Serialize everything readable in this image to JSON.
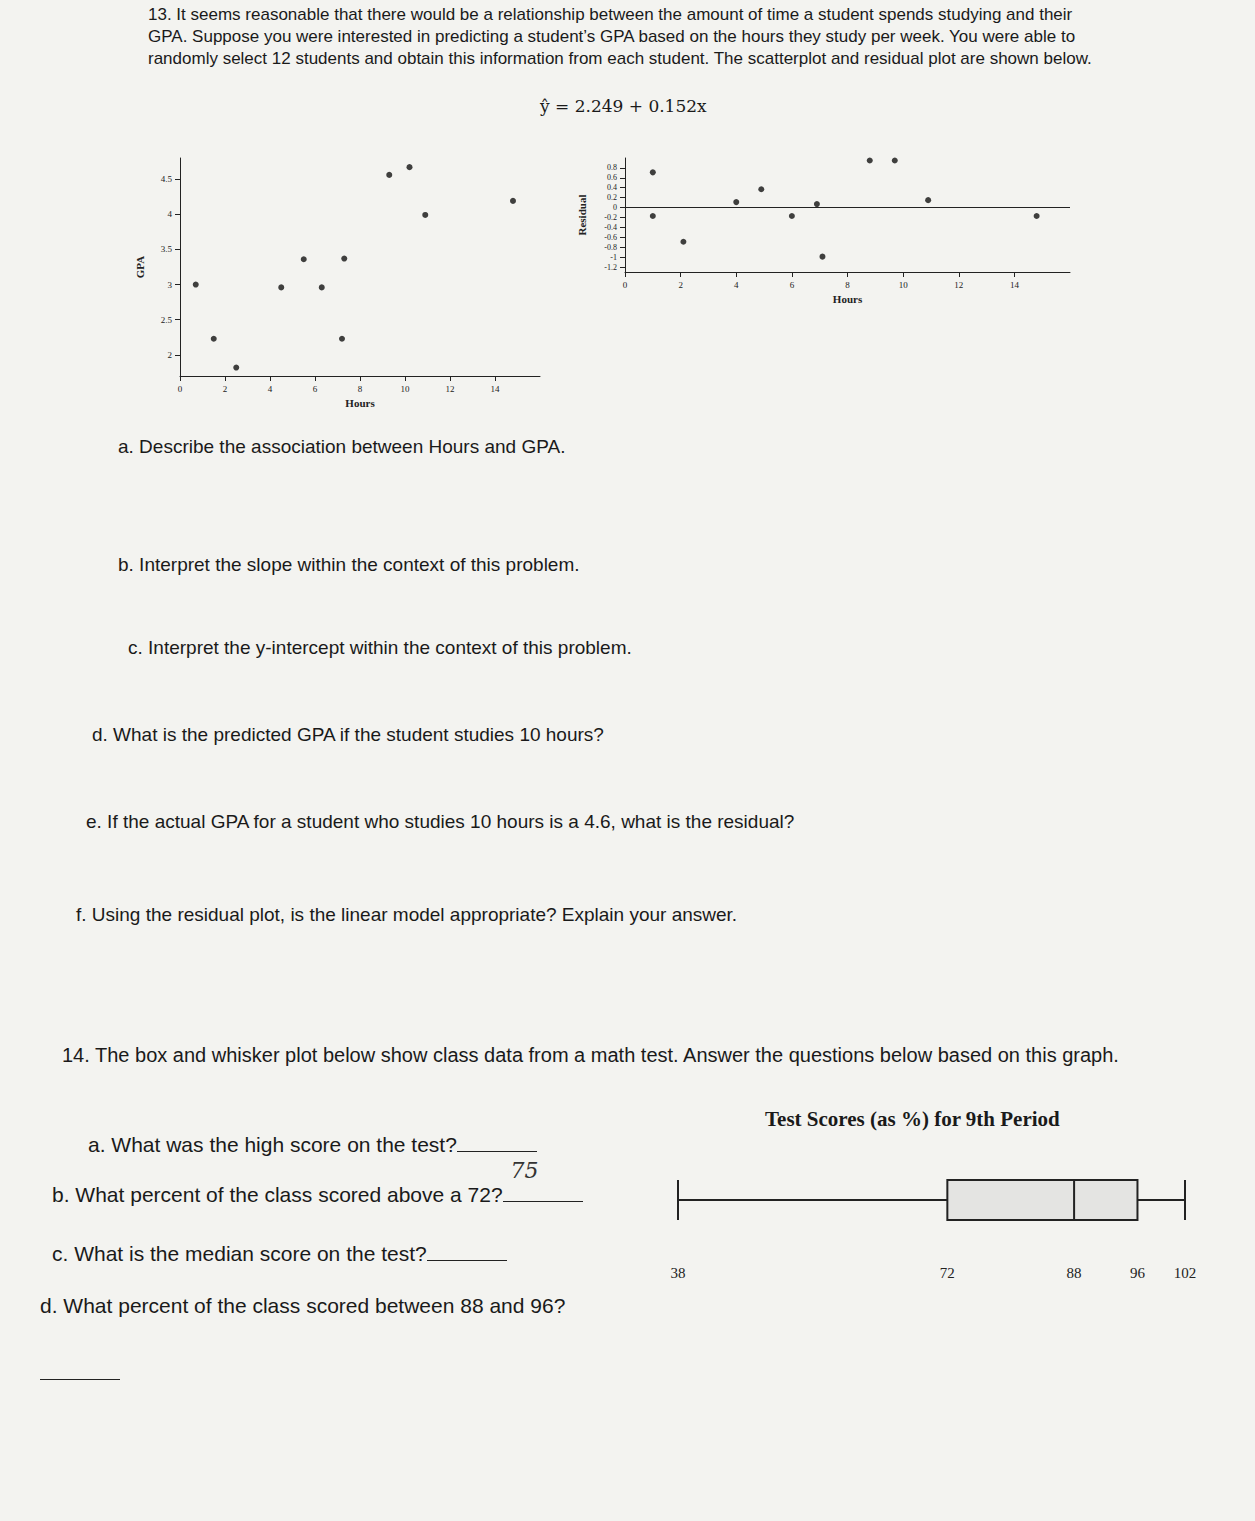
{
  "document": {
    "q13": {
      "number": "13.",
      "intro": "It seems reasonable that there would be a relationship between the amount of time a student spends studying and their GPA. Suppose you were interested in predicting a student’s GPA based on the hours they study per week. You were able to randomly select 12 students and obtain this information from each student. The scatterplot and residual plot are shown below.",
      "equation": "ŷ = 2.249 + 0.152x",
      "parts": [
        {
          "label": "a.",
          "text": "Describe the association between Hours and GPA."
        },
        {
          "label": "b.",
          "text": "Interpret the slope within the context of this problem."
        },
        {
          "label": "c.",
          "text": "Interpret the y-intercept within the context of this problem."
        },
        {
          "label": "d.",
          "text": "What is the predicted GPA if the student studies 10 hours?"
        },
        {
          "label": "e.",
          "text": "If the actual GPA for a student who studies 10 hours is a 4.6, what is the residual?"
        },
        {
          "label": "f.",
          "text": "Using the residual plot, is the linear model appropriate?  Explain your answer."
        }
      ]
    },
    "q14": {
      "number": "14.",
      "intro": "The box and whisker plot below show class data from a math test.  Answer the questions below based on this graph.",
      "parts": [
        {
          "label": "a.",
          "text": "What was the high score on the test?"
        },
        {
          "label": "b.",
          "text": "What percent of the class scored above a 72?",
          "answer": "75"
        },
        {
          "label": "c.",
          "text": "What is the median score on the test?"
        },
        {
          "label": "d.",
          "text": "What percent of the class scored between 88 and 96?"
        }
      ]
    }
  },
  "chart_data": [
    {
      "type": "scatter",
      "x_label": "Hours",
      "y_label": "GPA",
      "x": [
        0.7,
        1.5,
        2.5,
        4.5,
        5.5,
        6.3,
        7.3,
        7.2,
        9.3,
        10.2,
        10.9,
        14.8
      ],
      "values": [
        3.0,
        2.23,
        1.82,
        2.96,
        3.36,
        2.96,
        3.37,
        2.23,
        4.56,
        4.67,
        3.99,
        4.19
      ],
      "xlim": [
        0,
        16
      ],
      "xticks": [
        0,
        2,
        4,
        6,
        8,
        10,
        12,
        14
      ],
      "ylim": [
        1.7,
        4.8
      ],
      "yticks": [
        2,
        2.5,
        3,
        3.5,
        4,
        4.5
      ],
      "color": "#111111",
      "marker": "circle",
      "grid": false
    },
    {
      "type": "scatter",
      "x_label": "Hours",
      "y_label": "Residual",
      "x": [
        1.0,
        1.0,
        2.1,
        4.0,
        4.9,
        6.0,
        6.9,
        7.1,
        8.8,
        9.7,
        10.9,
        14.8
      ],
      "values": [
        0.71,
        -0.17,
        -0.69,
        0.11,
        0.37,
        -0.17,
        0.07,
        -0.99,
        0.95,
        0.95,
        0.15,
        -0.17
      ],
      "xlim": [
        0,
        16
      ],
      "xticks": [
        0,
        2,
        4,
        6,
        8,
        10,
        12,
        14
      ],
      "ylim": [
        -1.3,
        1.0
      ],
      "yticks": [
        -1.2,
        -1,
        -0.8,
        -0.6,
        -0.4,
        -0.2,
        0,
        0.2,
        0.4,
        0.6,
        0.8
      ],
      "reference_y": 0,
      "color": "#111111",
      "marker": "circle",
      "grid": false
    },
    {
      "type": "boxplot",
      "title": "Test Scores (as %) for 9th Period",
      "orientation": "horizontal",
      "min": 38,
      "q1": 72,
      "median": 88,
      "q3": 96,
      "max": 102,
      "xlim": [
        38,
        102
      ],
      "xticks": [
        38,
        72,
        88,
        96,
        102
      ],
      "color": "#222222",
      "grid": false
    }
  ]
}
